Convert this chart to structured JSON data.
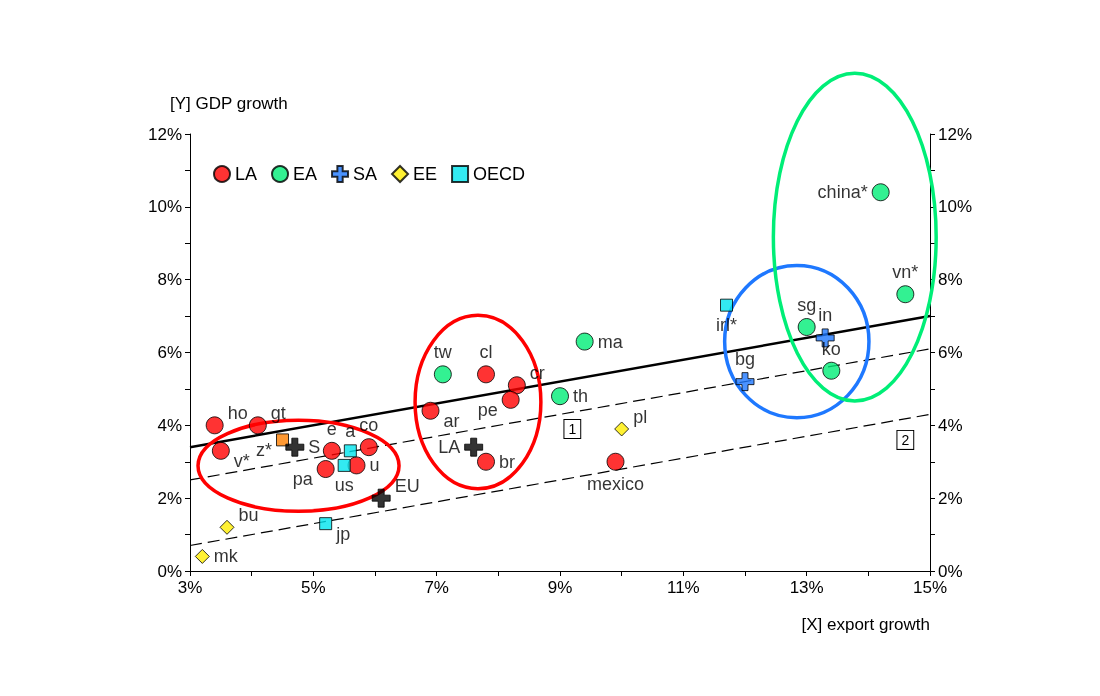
{
  "chart_data": {
    "type": "scatter",
    "xlabel": "[X] export growth",
    "ylabel": "[Y] GDP growth",
    "xlim": [
      3,
      15
    ],
    "ylim": [
      0,
      12
    ],
    "y2lim": [
      0,
      12
    ],
    "xticks": [
      {
        "value": 3,
        "label": "3%"
      },
      {
        "value": 4,
        "label": null
      },
      {
        "value": 5,
        "label": "5%"
      },
      {
        "value": 6,
        "label": null
      },
      {
        "value": 7,
        "label": "7%"
      },
      {
        "value": 8,
        "label": null
      },
      {
        "value": 9,
        "label": "9%"
      },
      {
        "value": 10,
        "label": null
      },
      {
        "value": 11,
        "label": "11%"
      },
      {
        "value": 12,
        "label": null
      },
      {
        "value": 13,
        "label": "13%"
      },
      {
        "value": 14,
        "label": null
      },
      {
        "value": 15,
        "label": "15%"
      }
    ],
    "yticks": [
      {
        "value": 0,
        "label": "0%"
      },
      {
        "value": 1,
        "label": null
      },
      {
        "value": 2,
        "label": "2%"
      },
      {
        "value": 3,
        "label": null
      },
      {
        "value": 4,
        "label": "4%"
      },
      {
        "value": 5,
        "label": null
      },
      {
        "value": 6,
        "label": "6%"
      },
      {
        "value": 7,
        "label": null
      },
      {
        "value": 8,
        "label": "8%"
      },
      {
        "value": 9,
        "label": null
      },
      {
        "value": 10,
        "label": "10%"
      },
      {
        "value": 11,
        "label": null
      },
      {
        "value": 12,
        "label": "12%"
      }
    ],
    "y2ticks": [
      {
        "value": 0,
        "label": "0%"
      },
      {
        "value": 1,
        "label": null
      },
      {
        "value": 2,
        "label": "2%"
      },
      {
        "value": 3,
        "label": null
      },
      {
        "value": 4,
        "label": "4%"
      },
      {
        "value": 5,
        "label": null
      },
      {
        "value": 6,
        "label": "6%"
      },
      {
        "value": 7,
        "label": null
      },
      {
        "value": 8,
        "label": "8%"
      },
      {
        "value": 9,
        "label": null
      },
      {
        "value": 10,
        "label": "10%"
      },
      {
        "value": 11,
        "label": null
      },
      {
        "value": 12,
        "label": "12%"
      }
    ],
    "grid": false,
    "legend": "top left",
    "series": [
      {
        "name": "LA",
        "color": "#ff0000",
        "marker": "circle",
        "x": [
          3.4,
          4.1,
          3.5,
          5.3,
          5.9,
          5.2,
          5.7,
          6.9,
          7.8,
          8.3,
          8.2,
          7.8,
          9.9
        ],
        "values": [
          4.0,
          4.0,
          3.3,
          3.3,
          3.4,
          2.8,
          2.9,
          4.4,
          5.4,
          5.1,
          4.7,
          3.0,
          3.0
        ],
        "value_labels": [
          "ho",
          "gt",
          "v*",
          "e",
          "co",
          "pa",
          "u",
          "ar",
          "cl",
          "cr",
          "pe",
          "br",
          "mexico"
        ]
      },
      {
        "name": "EA",
        "color": "#00ee77",
        "marker": "circle",
        "x": [
          7.1,
          9.4,
          9.0,
          14.2,
          14.6,
          13.0,
          13.4
        ],
        "values": [
          5.4,
          6.3,
          4.8,
          10.4,
          7.6,
          6.7,
          5.5
        ],
        "value_labels": [
          "tw",
          "ma",
          "th",
          "china*",
          "vn*",
          "sg",
          "ko"
        ]
      },
      {
        "name": "SA",
        "color": "#1e78ff",
        "marker": "cross",
        "x": [
          12.0,
          13.3
        ],
        "values": [
          5.2,
          6.4
        ],
        "value_labels": [
          "bg",
          "in"
        ]
      },
      {
        "name": "EE",
        "color": "#ffee00",
        "marker": "diamond",
        "x": [
          3.6,
          3.2,
          10.0
        ],
        "values": [
          1.2,
          0.4,
          3.9
        ],
        "value_labels": [
          "bu",
          "mk",
          "pl"
        ]
      },
      {
        "name": "OECD",
        "color": "#00e5ee",
        "marker": "square",
        "x": [
          11.7,
          5.6,
          5.5,
          5.2
        ],
        "values": [
          7.3,
          3.3,
          2.9,
          1.3
        ],
        "value_labels": [
          "irl*",
          "a",
          "us",
          "jp"
        ]
      },
      {
        "color": "#ff7f00",
        "marker": "square",
        "x": [
          4.5
        ],
        "values": [
          3.6
        ],
        "value_labels": [
          "z*"
        ]
      },
      {
        "color": "#000000",
        "marker": "cross",
        "x": [
          4.7,
          7.6,
          6.1
        ],
        "values": [
          3.4,
          3.4,
          2.0
        ],
        "value_labels": [
          "S",
          "LA",
          "EU"
        ]
      },
      {
        "type": "line",
        "color": "#000000",
        "line_style": "solid",
        "marker": "none",
        "x": [
          3,
          15
        ],
        "values": [
          3.4,
          7.0
        ]
      },
      {
        "type": "line",
        "color": "#000000",
        "line_style": "dashed",
        "marker": "none",
        "x": [
          3,
          15
        ],
        "values": [
          2.5,
          6.1
        ]
      },
      {
        "type": "line",
        "color": "#000000",
        "line_style": "dashed",
        "marker": "none",
        "x": [
          3,
          15
        ],
        "values": [
          0.7,
          4.3
        ]
      }
    ],
    "annotations": [
      {
        "text": "1",
        "x": 9.2,
        "y": 3.9
      },
      {
        "text": "2",
        "x": 14.6,
        "y": 3.6
      }
    ]
  }
}
